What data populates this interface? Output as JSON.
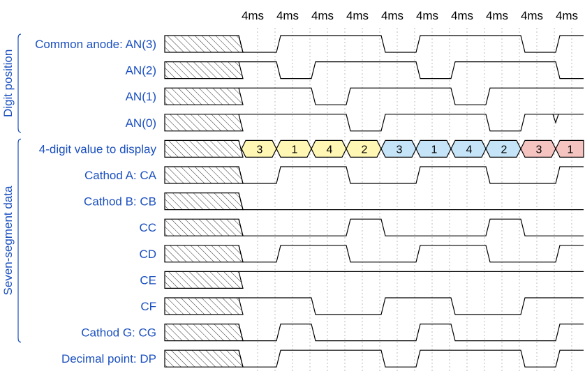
{
  "groups": [
    {
      "label": "Digit position",
      "rows": [
        0,
        3
      ]
    },
    {
      "label": "Seven-segment data",
      "rows": [
        4,
        11
      ]
    }
  ],
  "time_slot_label": "4ms",
  "slot_count": 10,
  "colors": {
    "label": "#1a4fbf",
    "digit_yellow": "#fff7b3",
    "digit_blue": "#c5e4f7",
    "digit_red": "#f6c4c0"
  },
  "signals": [
    {
      "label": "Common anode: AN(3)",
      "type": "wave",
      "levels": [
        0,
        1,
        1,
        1,
        0,
        1,
        1,
        1,
        0,
        1
      ]
    },
    {
      "label": "AN(2)",
      "type": "wave",
      "levels": [
        1,
        0,
        1,
        1,
        1,
        0,
        1,
        1,
        1,
        0
      ]
    },
    {
      "label": "AN(1)",
      "type": "wave",
      "levels": [
        1,
        1,
        0,
        1,
        1,
        1,
        0,
        1,
        1,
        1
      ]
    },
    {
      "label": "AN(0)",
      "type": "wave",
      "levels": [
        1,
        1,
        1,
        0,
        1,
        1,
        1,
        0,
        1,
        1
      ],
      "glitch_slot": 9
    },
    {
      "label": "4-digit value to display",
      "type": "bus",
      "values": [
        "3",
        "1",
        "4",
        "2",
        "3",
        "1",
        "4",
        "2",
        "3",
        "1"
      ],
      "colors": [
        "digit_yellow",
        "digit_yellow",
        "digit_yellow",
        "digit_yellow",
        "digit_blue",
        "digit_blue",
        "digit_blue",
        "digit_blue",
        "digit_red",
        "digit_red"
      ]
    },
    {
      "label": "Cathod A: CA",
      "type": "wave",
      "levels": [
        0,
        1,
        1,
        0,
        0,
        1,
        1,
        0,
        0,
        1
      ]
    },
    {
      "label": "Cathod B: CB",
      "type": "wave",
      "levels": [
        0,
        0,
        0,
        0,
        0,
        0,
        0,
        0,
        0,
        0
      ]
    },
    {
      "label": "CC",
      "type": "wave",
      "levels": [
        0,
        0,
        0,
        1,
        0,
        0,
        0,
        1,
        0,
        0
      ]
    },
    {
      "label": "CD",
      "type": "wave",
      "levels": [
        0,
        1,
        1,
        0,
        0,
        1,
        1,
        0,
        0,
        1
      ]
    },
    {
      "label": "CE",
      "type": "wave",
      "levels": [
        1,
        1,
        1,
        1,
        1,
        1,
        1,
        1,
        1,
        1
      ]
    },
    {
      "label": "CF",
      "type": "wave",
      "levels": [
        1,
        1,
        0,
        0,
        1,
        1,
        0,
        0,
        1,
        1
      ]
    },
    {
      "label": "Cathod G: CG",
      "type": "wave",
      "levels": [
        0,
        1,
        0,
        0,
        0,
        1,
        0,
        0,
        0,
        1
      ]
    },
    {
      "label": "Decimal point: DP",
      "type": "wave",
      "levels": [
        0,
        1,
        1,
        1,
        0,
        1,
        1,
        1,
        0,
        1
      ]
    }
  ]
}
